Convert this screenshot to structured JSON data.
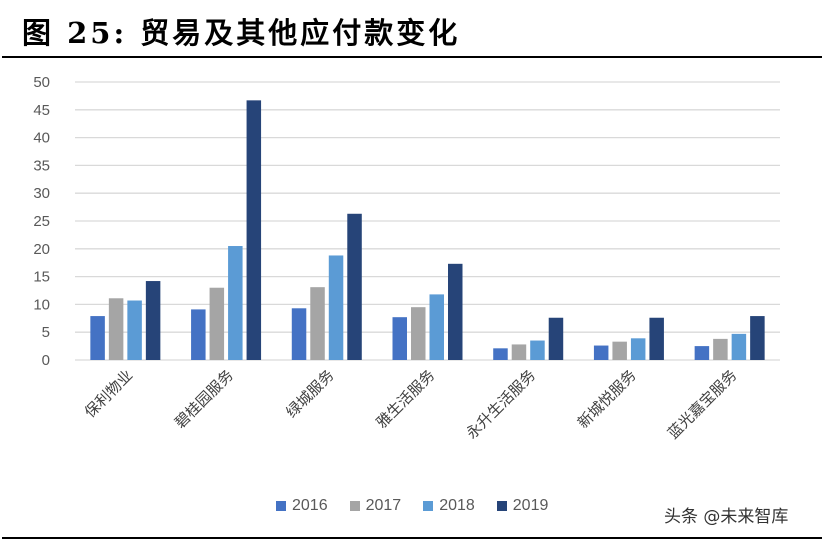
{
  "title": "图 25:  贸易及其他应付款变化",
  "watermark": "头条 @未来智库",
  "colors": {
    "2016": "#4472C4",
    "2017": "#A5A5A5",
    "2018": "#5B9BD5",
    "2019": "#264478"
  },
  "legend": [
    {
      "label": "2016",
      "color": "#4472C4"
    },
    {
      "label": "2017",
      "color": "#A5A5A5"
    },
    {
      "label": "2018",
      "color": "#5B9BD5"
    },
    {
      "label": "2019",
      "color": "#264478"
    }
  ],
  "chart_data": {
    "type": "bar",
    "title": "图 25: 贸易及其他应付款变化",
    "xlabel": "",
    "ylabel": "",
    "ylim": [
      0,
      50
    ],
    "yticks": [
      0,
      5,
      10,
      15,
      20,
      25,
      30,
      35,
      40,
      45,
      50
    ],
    "grid": true,
    "legend_position": "bottom",
    "categories": [
      "保利物业",
      "碧桂园服务",
      "绿城服务",
      "雅生活服务",
      "永升生活服务",
      "新城悦服务",
      "蓝光嘉宝服务"
    ],
    "series": [
      {
        "name": "2016",
        "values": [
          7.9,
          9.1,
          9.3,
          7.7,
          2.1,
          2.6,
          2.5
        ]
      },
      {
        "name": "2017",
        "values": [
          11.1,
          13.0,
          13.1,
          9.5,
          2.8,
          3.3,
          3.8
        ]
      },
      {
        "name": "2018",
        "values": [
          10.7,
          20.5,
          18.8,
          11.8,
          3.5,
          3.9,
          4.7
        ]
      },
      {
        "name": "2019",
        "values": [
          14.2,
          46.7,
          26.3,
          17.3,
          7.6,
          7.6,
          7.9
        ]
      }
    ]
  }
}
